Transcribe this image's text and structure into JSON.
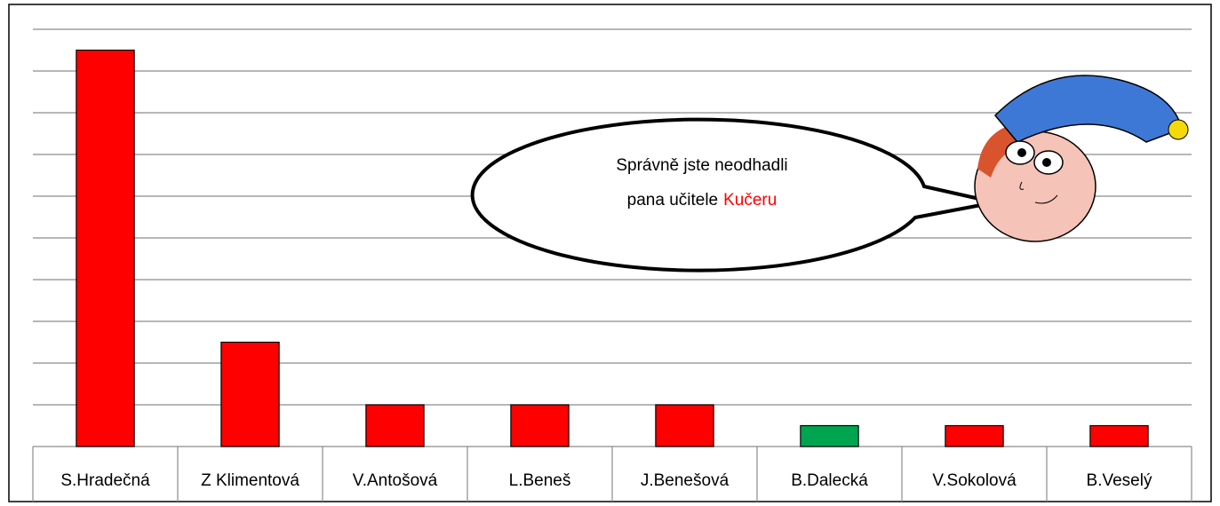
{
  "chart_data": {
    "type": "bar",
    "categories": [
      "S.Hradečná",
      "Z Klimentová",
      "V.Antošová",
      "L.Beneš",
      "J.Benešová",
      "B.Dalecká",
      "V.Sokolová",
      "B.Veselý"
    ],
    "values": [
      19,
      5,
      2,
      2,
      2,
      1,
      1,
      1
    ],
    "colors": [
      "#ff0000",
      "#ff0000",
      "#ff0000",
      "#ff0000",
      "#ff0000",
      "#00a550",
      "#ff0000",
      "#ff0000"
    ],
    "ylim": [
      0,
      20
    ],
    "yticks": [
      0,
      2,
      4,
      6,
      8,
      10,
      12,
      14,
      16,
      18,
      20
    ],
    "grid": true,
    "tick_labels": false,
    "annotation": {
      "lines": [
        "Správně jste neodhadli",
        "pana učitele"
      ],
      "highlight": "Kučeru",
      "highlight_color": "#ff0000"
    }
  }
}
